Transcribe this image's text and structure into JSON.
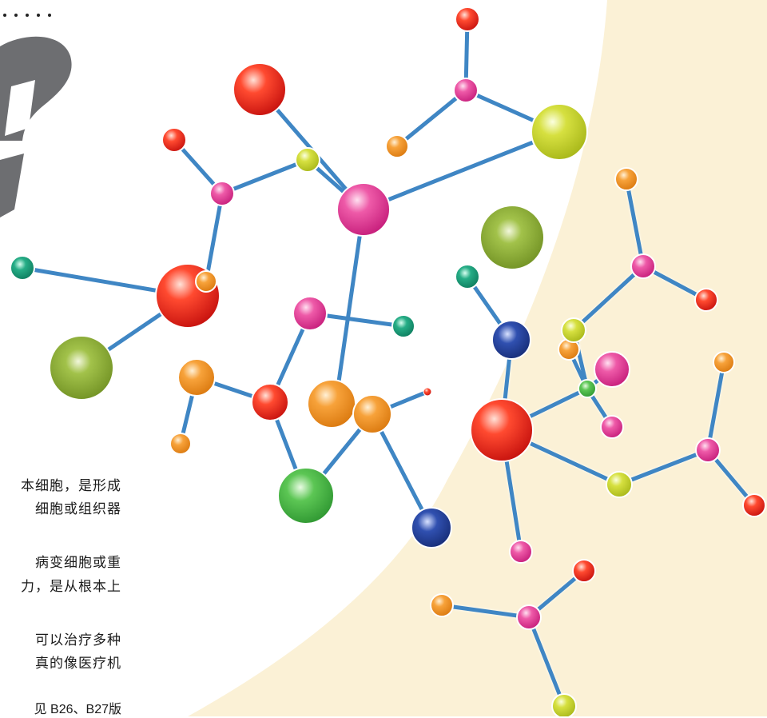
{
  "page": {
    "text_lines": [
      "本细胞，是形成",
      "细胞或组织器",
      "病变细胞或重",
      "力，是从根本上",
      "可以治疗多种",
      "真的像医疗机",
      "见 B26、B27版"
    ]
  },
  "illustration": {
    "subject": "molecule-model",
    "colors": {
      "background_cream": "#fbf1d6",
      "question_mark_grey": "#6d6e71",
      "bond_blue": "#3f86c4",
      "atom_red": "#e8201e",
      "atom_pink": "#e4429a",
      "atom_orange": "#f29420",
      "atom_yellow_green": "#c8d42c",
      "atom_olive": "#8db03a",
      "atom_green": "#4cb94a",
      "atom_teal": "#1a9a7a",
      "atom_navy": "#21409a"
    }
  }
}
